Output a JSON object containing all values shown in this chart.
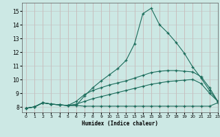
{
  "xlabel": "Humidex (Indice chaleur)",
  "bg_color": "#cce8e4",
  "line_color": "#1a6b5a",
  "xlim": [
    -0.5,
    23
  ],
  "ylim": [
    7.6,
    15.6
  ],
  "xticks": [
    0,
    1,
    2,
    3,
    4,
    5,
    6,
    7,
    8,
    9,
    10,
    11,
    12,
    13,
    14,
    15,
    16,
    17,
    18,
    19,
    20,
    21,
    22,
    23
  ],
  "yticks": [
    8,
    9,
    10,
    11,
    12,
    13,
    14,
    15
  ],
  "line1_x": [
    0,
    1,
    2,
    3,
    4,
    5,
    6,
    7,
    8,
    9,
    10,
    11,
    12,
    13,
    14,
    15,
    16,
    17,
    18,
    19,
    20,
    21,
    22,
    23
  ],
  "line1_y": [
    7.9,
    8.0,
    8.3,
    8.2,
    8.15,
    8.1,
    8.1,
    8.05,
    8.05,
    8.05,
    8.05,
    8.05,
    8.05,
    8.05,
    8.05,
    8.05,
    8.05,
    8.05,
    8.05,
    8.05,
    8.05,
    8.05,
    8.05,
    8.3
  ],
  "line2_x": [
    0,
    1,
    2,
    3,
    4,
    5,
    6,
    7,
    8,
    9,
    10,
    11,
    12,
    13,
    14,
    15,
    16,
    17,
    18,
    19,
    20,
    21,
    22,
    23
  ],
  "line2_y": [
    7.9,
    8.0,
    8.3,
    8.2,
    8.15,
    8.1,
    8.1,
    8.8,
    9.4,
    9.9,
    10.35,
    10.8,
    11.4,
    12.6,
    14.8,
    15.2,
    14.0,
    13.4,
    12.7,
    11.9,
    10.9,
    10.1,
    9.2,
    8.4
  ],
  "line3_x": [
    0,
    1,
    2,
    3,
    4,
    5,
    6,
    7,
    8,
    9,
    10,
    11,
    12,
    13,
    14,
    15,
    16,
    17,
    18,
    19,
    20,
    21,
    22,
    23
  ],
  "line3_y": [
    7.9,
    8.0,
    8.3,
    8.2,
    8.15,
    8.1,
    8.4,
    8.9,
    9.2,
    9.4,
    9.6,
    9.75,
    9.9,
    10.1,
    10.3,
    10.5,
    10.6,
    10.65,
    10.65,
    10.6,
    10.55,
    10.2,
    9.4,
    8.4
  ],
  "line4_x": [
    0,
    1,
    2,
    3,
    4,
    5,
    6,
    7,
    8,
    9,
    10,
    11,
    12,
    13,
    14,
    15,
    16,
    17,
    18,
    19,
    20,
    21,
    22,
    23
  ],
  "line4_y": [
    7.9,
    8.0,
    8.3,
    8.2,
    8.15,
    8.1,
    8.2,
    8.4,
    8.6,
    8.75,
    8.9,
    9.05,
    9.2,
    9.35,
    9.5,
    9.65,
    9.75,
    9.85,
    9.9,
    9.95,
    10.0,
    9.7,
    9.0,
    8.4
  ]
}
